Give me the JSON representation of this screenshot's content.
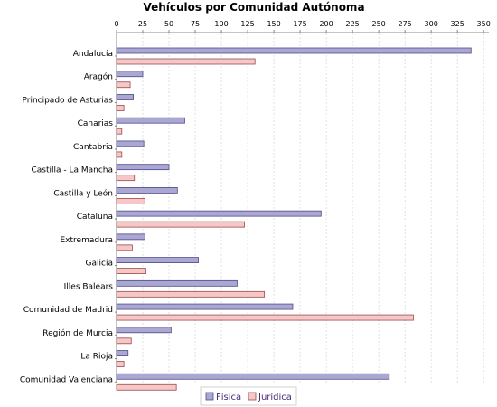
{
  "chart_data": {
    "type": "bar",
    "orientation": "horizontal",
    "title": "Vehículos por Comunidad Autónoma",
    "xlabel": "",
    "ylabel": "",
    "xlim": [
      0,
      355
    ],
    "x_ticks": [
      0,
      25,
      50,
      75,
      100,
      125,
      150,
      175,
      200,
      225,
      250,
      275,
      300,
      325,
      350
    ],
    "grid": true,
    "legend_position": "bottom",
    "categories": [
      "Andalucía",
      "Aragón",
      "Principado de Asturias",
      "Canarias",
      "Cantabria",
      "Castilla - La Mancha",
      "Castilla y León",
      "Cataluña",
      "Extremadura",
      "Galicia",
      "Illes Balears",
      "Comunidad de Madrid",
      "Región de Murcia",
      "La Rioja",
      "Comunidad Valenciana"
    ],
    "series": [
      {
        "name": "Física",
        "color": "#aaa7d3",
        "stroke": "#4f4a8a",
        "values": [
          338,
          25,
          16,
          65,
          26,
          50,
          58,
          195,
          27,
          78,
          115,
          168,
          52,
          11,
          260
        ]
      },
      {
        "name": "Jurídica",
        "color": "#f5c7c7",
        "stroke": "#9a4b4b",
        "values": [
          132,
          13,
          7,
          5,
          5,
          17,
          27,
          122,
          15,
          28,
          141,
          283,
          14,
          7,
          57
        ]
      }
    ]
  }
}
